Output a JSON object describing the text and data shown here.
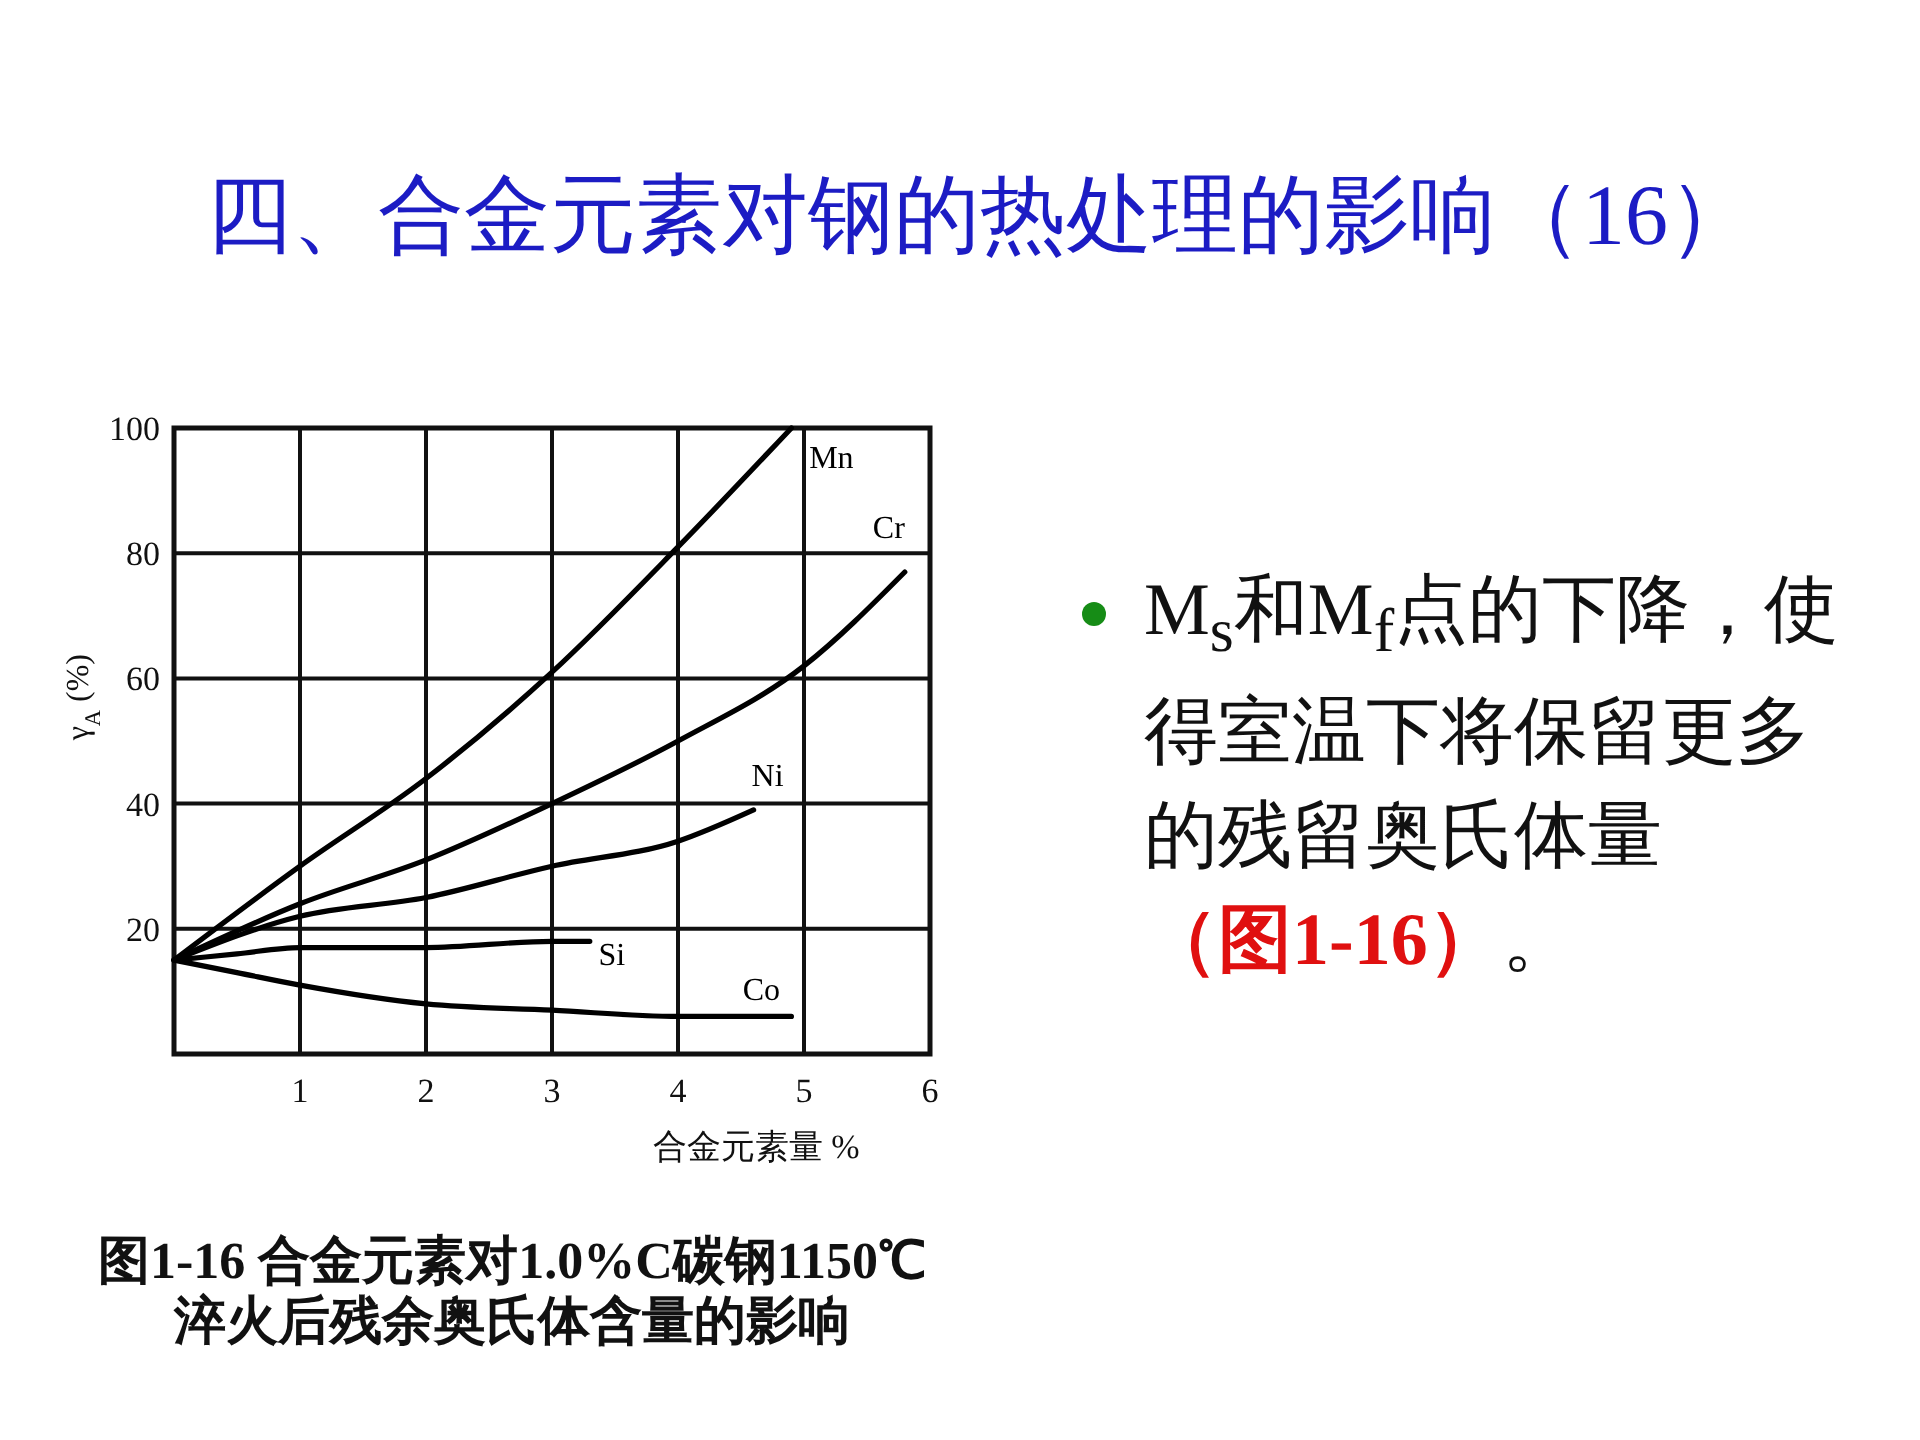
{
  "chart_data": {
    "type": "line",
    "title": "四、合金元素对钢的热处理的影响（16）",
    "xlabel": "合金元素量 %",
    "ylabel": "γ$_{A}$ (%)",
    "xlim": [
      0,
      6
    ],
    "ylim": [
      0,
      100
    ],
    "xticks": [
      1,
      2,
      3,
      4,
      5,
      6
    ],
    "yticks": [
      20,
      40,
      60,
      80,
      100
    ],
    "grid": true,
    "series": [
      {
        "name": "Mn",
        "color": "#000000",
        "x": [
          0,
          1,
          2,
          3,
          4,
          4.9
        ],
        "values": [
          15,
          30,
          44,
          61,
          81,
          100
        ]
      },
      {
        "name": "Cr",
        "color": "#000000",
        "x": [
          0,
          1,
          2,
          3,
          4,
          5,
          5.8
        ],
        "values": [
          15,
          24,
          31,
          40,
          50,
          62,
          77
        ]
      },
      {
        "name": "Ni",
        "color": "#000000",
        "x": [
          0,
          1,
          2,
          3,
          4,
          4.6
        ],
        "values": [
          15,
          22,
          25,
          30,
          34,
          39
        ]
      },
      {
        "name": "Si",
        "color": "#000000",
        "x": [
          0,
          0.5,
          1,
          2,
          3,
          3.3
        ],
        "values": [
          15,
          16,
          17,
          17,
          18,
          18
        ]
      },
      {
        "name": "Co",
        "color": "#000000",
        "x": [
          0,
          0.5,
          1,
          2,
          3,
          4,
          4.9
        ],
        "values": [
          15,
          13,
          11,
          8,
          7,
          6,
          6
        ]
      }
    ],
    "annotations": [
      "图1-16 合金元素对1.0%C碳钢1150℃淬火后残余奥氏体含量的影响",
      "M$_{s}$和M$_{f}$点的下降，使得室温下将保留更多的残留奥氏体量",
      "（图1-16）",
      "。"
    ]
  }
}
